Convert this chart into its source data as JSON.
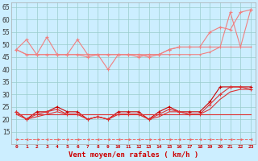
{
  "xlabel": "Vent moyen/en rafales ( km/h )",
  "background_color": "#cceeff",
  "grid_color": "#99cccc",
  "x": [
    0,
    1,
    2,
    3,
    4,
    5,
    6,
    7,
    8,
    9,
    10,
    11,
    12,
    13,
    14,
    15,
    16,
    17,
    18,
    19,
    20,
    21,
    22,
    23
  ],
  "line_dashed_bottom": [
    12,
    12,
    12,
    12,
    12,
    12,
    12,
    12,
    12,
    12,
    12,
    12,
    12,
    12,
    12,
    12,
    12,
    12,
    12,
    12,
    12,
    12,
    12,
    12
  ],
  "line_pink_upper1": [
    48,
    52,
    46,
    53,
    46,
    46,
    52,
    46,
    46,
    40,
    46,
    46,
    45,
    46,
    46,
    48,
    49,
    49,
    49,
    49,
    49,
    63,
    49,
    64
  ],
  "line_pink_upper2": [
    48,
    46,
    46,
    46,
    46,
    46,
    46,
    45,
    46,
    46,
    46,
    46,
    46,
    45,
    46,
    48,
    49,
    49,
    49,
    55,
    57,
    56,
    63,
    64
  ],
  "line_pink_flat": [
    48,
    46,
    46,
    46,
    46,
    46,
    46,
    46,
    46,
    46,
    46,
    46,
    46,
    46,
    46,
    46,
    46,
    46,
    46,
    47,
    49,
    49,
    49,
    49
  ],
  "line_red_upper": [
    23,
    20,
    23,
    23,
    25,
    23,
    23,
    20,
    21,
    20,
    23,
    23,
    23,
    20,
    23,
    25,
    23,
    23,
    23,
    27,
    33,
    33,
    33,
    33
  ],
  "line_red_mid1": [
    23,
    20,
    22,
    23,
    24,
    22,
    22,
    20,
    21,
    20,
    22,
    22,
    22,
    20,
    22,
    24,
    23,
    22,
    22,
    26,
    30,
    33,
    33,
    32
  ],
  "line_red_mid2": [
    22,
    20,
    21,
    22,
    23,
    22,
    22,
    20,
    21,
    20,
    22,
    22,
    22,
    20,
    21,
    23,
    23,
    22,
    22,
    24,
    28,
    31,
    32,
    32
  ],
  "line_red_flat": [
    22,
    22,
    22,
    22,
    22,
    22,
    22,
    22,
    22,
    22,
    22,
    22,
    22,
    22,
    22,
    22,
    22,
    22,
    22,
    22,
    22,
    22,
    22,
    22
  ],
  "ylim_min": 10,
  "ylim_max": 67,
  "yticks": [
    15,
    20,
    25,
    30,
    35,
    40,
    45,
    50,
    55,
    60,
    65
  ],
  "color_pink_light": "#f08080",
  "color_pink_medium": "#e06060",
  "color_red_dark": "#cc0000",
  "color_red_medium": "#dd3333",
  "color_dashed": "#ee6666"
}
